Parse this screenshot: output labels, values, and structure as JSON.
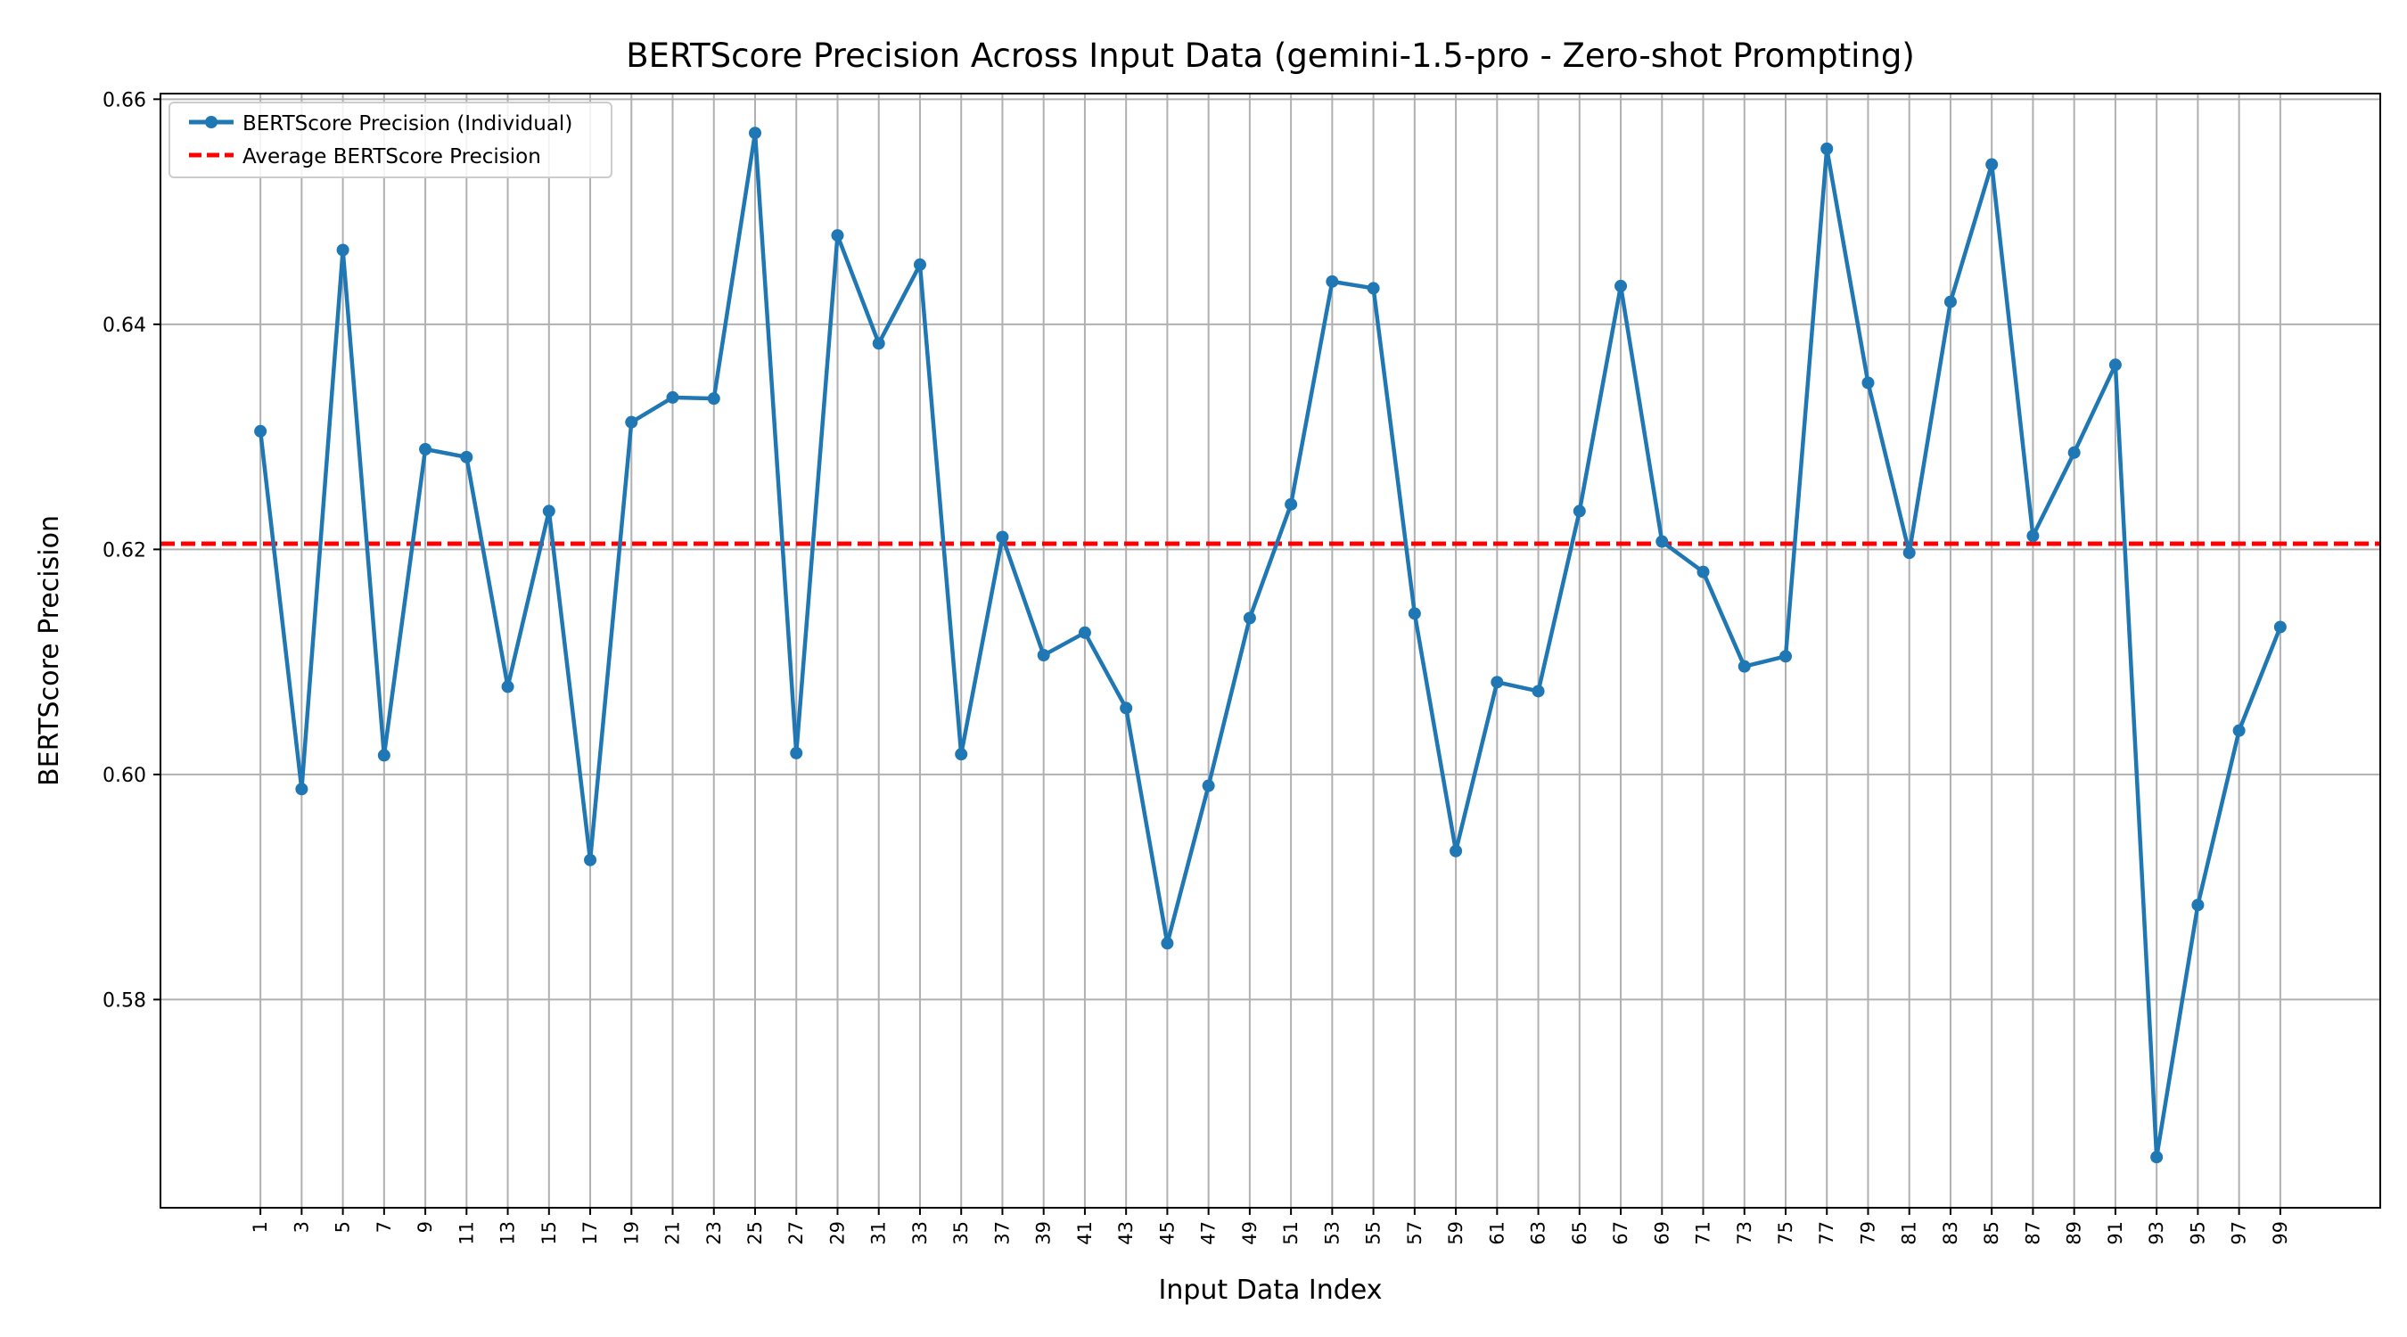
{
  "chart_data": {
    "type": "line",
    "title": "BERTScore Precision Across Input Data (gemini-1.5-pro - Zero-shot Prompting)",
    "xlabel": "Input Data Index",
    "ylabel": "BERTScore Precision",
    "x": [
      1,
      3,
      5,
      7,
      9,
      11,
      13,
      15,
      17,
      19,
      21,
      23,
      25,
      27,
      29,
      31,
      33,
      35,
      37,
      39,
      41,
      43,
      45,
      47,
      49,
      51,
      53,
      55,
      57,
      59,
      61,
      63,
      65,
      67,
      69,
      71,
      73,
      75,
      77,
      79,
      81,
      83,
      85,
      87,
      89,
      91,
      93,
      95,
      97,
      99
    ],
    "xticks": [
      "1",
      "3",
      "5",
      "7",
      "9",
      "11",
      "13",
      "15",
      "17",
      "19",
      "21",
      "23",
      "25",
      "27",
      "29",
      "31",
      "33",
      "35",
      "37",
      "39",
      "41",
      "43",
      "45",
      "47",
      "49",
      "51",
      "53",
      "55",
      "57",
      "59",
      "61",
      "63",
      "65",
      "67",
      "69",
      "71",
      "73",
      "75",
      "77",
      "79",
      "81",
      "83",
      "85",
      "87",
      "89",
      "91",
      "93",
      "95",
      "97",
      "99"
    ],
    "yticks": [
      "0.58",
      "0.60",
      "0.62",
      "0.64",
      "0.66"
    ],
    "ytick_values": [
      0.58,
      0.6,
      0.62,
      0.64,
      0.66
    ],
    "xlim": [
      -3.85,
      103.85
    ],
    "ylim": [
      0.5615,
      0.6605
    ],
    "grid": true,
    "legend_position": "top-left",
    "series": [
      {
        "name": "BERTScore Precision (Individual)",
        "color": "#1f77b4",
        "values": [
          0.6305,
          0.5987,
          0.6466,
          0.6017,
          0.6289,
          0.6282,
          0.6078,
          0.6234,
          0.5924,
          0.6313,
          0.6335,
          0.6334,
          0.657,
          0.6019,
          0.6479,
          0.6383,
          0.6453,
          0.6018,
          0.6211,
          0.6106,
          0.6126,
          0.6059,
          0.585,
          0.599,
          0.6139,
          0.624,
          0.6438,
          0.6432,
          0.6143,
          0.5932,
          0.6082,
          0.6074,
          0.6234,
          0.6434,
          0.6207,
          0.618,
          0.6096,
          0.6105,
          0.6556,
          0.6348,
          0.6197,
          0.642,
          0.6542,
          0.6212,
          0.6286,
          0.6364,
          0.566,
          0.5884,
          0.6039,
          0.6131
        ]
      }
    ],
    "average": {
      "name": "Average BERTScore Precision",
      "color": "#ff0000",
      "value": 0.6205
    }
  }
}
